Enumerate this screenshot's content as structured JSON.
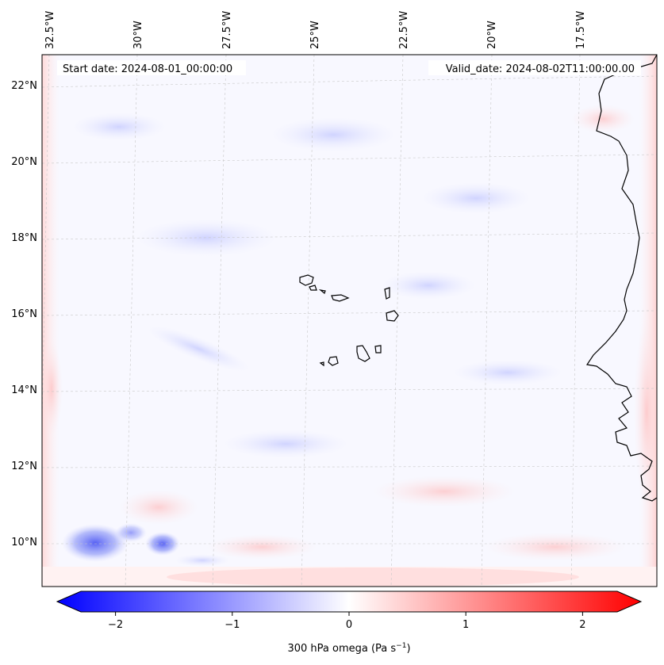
{
  "map": {
    "start_date_label": "Start date: 2024-08-01_00:00:00",
    "valid_date_label": "Valid_date: 2024-08-02T11:00:00.00",
    "lon_labels": [
      "32.5°W",
      "30°W",
      "27.5°W",
      "25°W",
      "22.5°W",
      "20°W",
      "17.5°W"
    ],
    "lat_labels": [
      "22°N",
      "20°N",
      "18°N",
      "16°N",
      "14°N",
      "12°N",
      "10°N"
    ],
    "gridlines": "dashed",
    "coastline_color": "#000000"
  },
  "colorbar": {
    "label_prefix": "300 hPa omega (Pa s",
    "label_exp": "−1",
    "label_suffix": ")",
    "ticks": [
      {
        "value": -2,
        "label": "−2"
      },
      {
        "value": -1,
        "label": "−1"
      },
      {
        "value": 0,
        "label": "0"
      },
      {
        "value": 1,
        "label": "1"
      },
      {
        "value": 2,
        "label": "2"
      }
    ],
    "range": [
      -2.5,
      2.5
    ],
    "low_color": "#0000ff",
    "mid_color": "#ffffff",
    "high_color": "#ff0000",
    "extend": "both"
  }
}
